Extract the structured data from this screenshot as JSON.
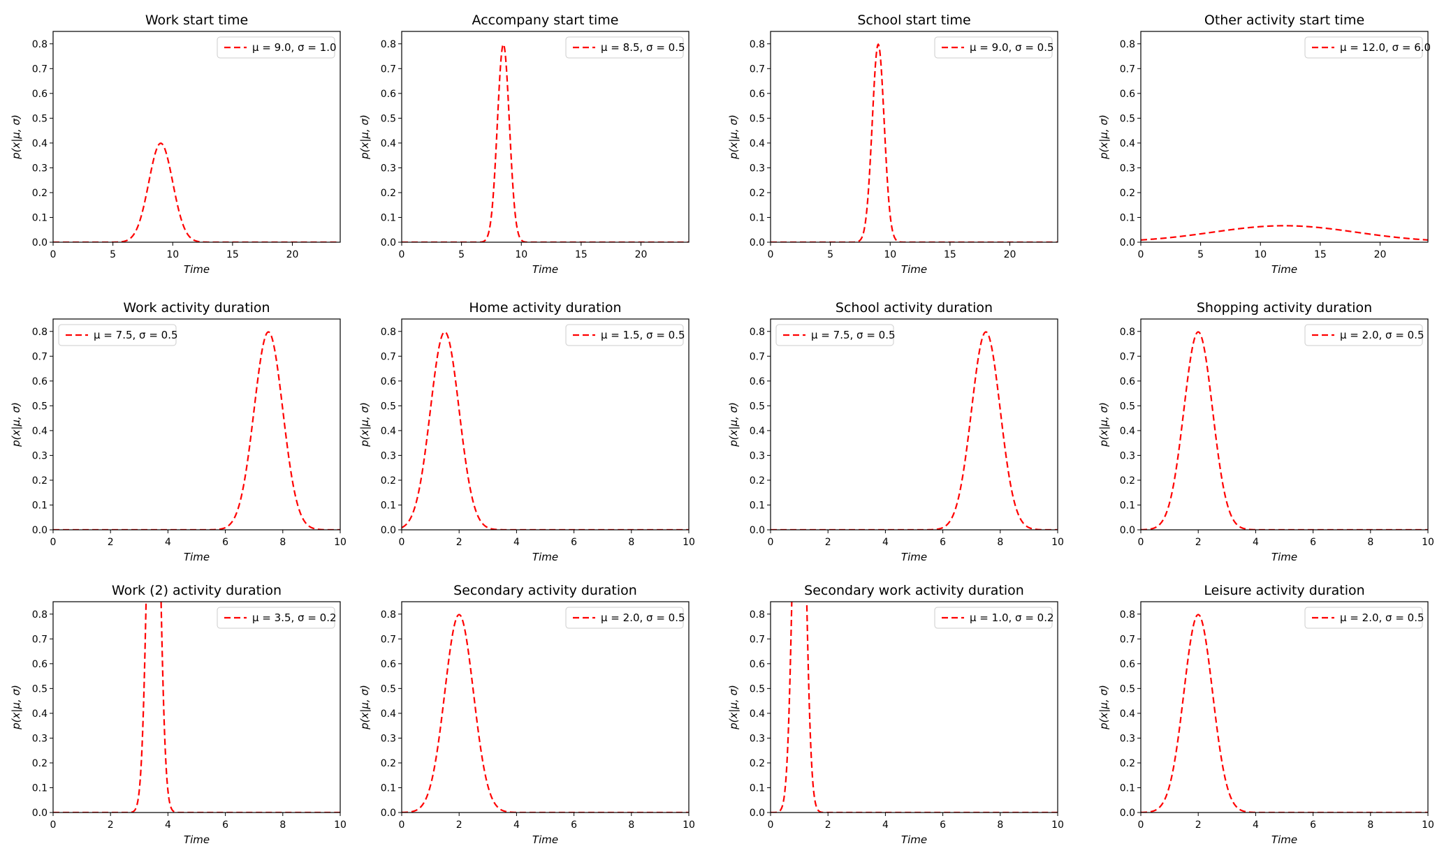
{
  "chart_data": [
    {
      "type": "line",
      "title": "Work start time",
      "xlabel": "Time",
      "ylabel": "p(x|μ, σ)",
      "xlim": [
        0,
        24
      ],
      "ylim": [
        0,
        0.85
      ],
      "xticks": [
        0,
        5,
        10,
        15,
        20
      ],
      "yticks": [
        0.0,
        0.1,
        0.2,
        0.3,
        0.4,
        0.5,
        0.6,
        0.7,
        0.8
      ],
      "legend": "top-right",
      "color": "#ff0000",
      "series": [
        {
          "name": "μ = 9.0,  σ = 1.0",
          "mu": 9.0,
          "sigma": 1.0
        }
      ]
    },
    {
      "type": "line",
      "title": "Accompany start time",
      "xlabel": "Time",
      "ylabel": "p(x|μ, σ)",
      "xlim": [
        0,
        24
      ],
      "ylim": [
        0,
        0.85
      ],
      "xticks": [
        0,
        5,
        10,
        15,
        20
      ],
      "yticks": [
        0.0,
        0.1,
        0.2,
        0.3,
        0.4,
        0.5,
        0.6,
        0.7,
        0.8
      ],
      "legend": "top-right",
      "color": "#ff0000",
      "series": [
        {
          "name": "μ = 8.5,  σ = 0.5",
          "mu": 8.5,
          "sigma": 0.5
        }
      ]
    },
    {
      "type": "line",
      "title": "School start time",
      "xlabel": "Time",
      "ylabel": "p(x|μ, σ)",
      "xlim": [
        0,
        24
      ],
      "ylim": [
        0,
        0.85
      ],
      "xticks": [
        0,
        5,
        10,
        15,
        20
      ],
      "yticks": [
        0.0,
        0.1,
        0.2,
        0.3,
        0.4,
        0.5,
        0.6,
        0.7,
        0.8
      ],
      "legend": "top-right",
      "color": "#ff0000",
      "series": [
        {
          "name": "μ = 9.0,  σ = 0.5",
          "mu": 9.0,
          "sigma": 0.5
        }
      ]
    },
    {
      "type": "line",
      "title": "Other activity start time",
      "xlabel": "Time",
      "ylabel": "p(x|μ, σ)",
      "xlim": [
        0,
        24
      ],
      "ylim": [
        0,
        0.85
      ],
      "xticks": [
        0,
        5,
        10,
        15,
        20
      ],
      "yticks": [
        0.0,
        0.1,
        0.2,
        0.3,
        0.4,
        0.5,
        0.6,
        0.7,
        0.8
      ],
      "legend": "top-right",
      "color": "#ff0000",
      "series": [
        {
          "name": "μ = 12.0,  σ = 6.0",
          "mu": 12.0,
          "sigma": 6.0
        }
      ]
    },
    {
      "type": "line",
      "title": "Work  activity duration",
      "xlabel": "Time",
      "ylabel": "p(x|μ, σ)",
      "xlim": [
        0,
        10
      ],
      "ylim": [
        0,
        0.85
      ],
      "xticks": [
        0,
        2,
        4,
        6,
        8,
        10
      ],
      "yticks": [
        0.0,
        0.1,
        0.2,
        0.3,
        0.4,
        0.5,
        0.6,
        0.7,
        0.8
      ],
      "legend": "top-left",
      "color": "#ff0000",
      "series": [
        {
          "name": "μ = 7.5,  σ = 0.5",
          "mu": 7.5,
          "sigma": 0.5
        }
      ]
    },
    {
      "type": "line",
      "title": "Home  activity duration",
      "xlabel": "Time",
      "ylabel": "p(x|μ, σ)",
      "xlim": [
        0,
        10
      ],
      "ylim": [
        0,
        0.85
      ],
      "xticks": [
        0,
        2,
        4,
        6,
        8,
        10
      ],
      "yticks": [
        0.0,
        0.1,
        0.2,
        0.3,
        0.4,
        0.5,
        0.6,
        0.7,
        0.8
      ],
      "legend": "top-right",
      "color": "#ff0000",
      "series": [
        {
          "name": "μ = 1.5,  σ = 0.5",
          "mu": 1.5,
          "sigma": 0.5
        }
      ]
    },
    {
      "type": "line",
      "title": "School  activity duration",
      "xlabel": "Time",
      "ylabel": "p(x|μ, σ)",
      "xlim": [
        0,
        10
      ],
      "ylim": [
        0,
        0.85
      ],
      "xticks": [
        0,
        2,
        4,
        6,
        8,
        10
      ],
      "yticks": [
        0.0,
        0.1,
        0.2,
        0.3,
        0.4,
        0.5,
        0.6,
        0.7,
        0.8
      ],
      "legend": "top-left",
      "color": "#ff0000",
      "series": [
        {
          "name": "μ = 7.5,  σ = 0.5",
          "mu": 7.5,
          "sigma": 0.5
        }
      ]
    },
    {
      "type": "line",
      "title": "Shopping  activity duration",
      "xlabel": "Time",
      "ylabel": "p(x|μ, σ)",
      "xlim": [
        0,
        10
      ],
      "ylim": [
        0,
        0.85
      ],
      "xticks": [
        0,
        2,
        4,
        6,
        8,
        10
      ],
      "yticks": [
        0.0,
        0.1,
        0.2,
        0.3,
        0.4,
        0.5,
        0.6,
        0.7,
        0.8
      ],
      "legend": "top-right",
      "color": "#ff0000",
      "series": [
        {
          "name": "μ = 2.0,  σ = 0.5",
          "mu": 2.0,
          "sigma": 0.5
        }
      ]
    },
    {
      "type": "line",
      "title": "Work (2)  activity duration",
      "xlabel": "Time",
      "ylabel": "p(x|μ, σ)",
      "xlim": [
        0,
        10
      ],
      "ylim": [
        0,
        0.85
      ],
      "xticks": [
        0,
        2,
        4,
        6,
        8,
        10
      ],
      "yticks": [
        0.0,
        0.1,
        0.2,
        0.3,
        0.4,
        0.5,
        0.6,
        0.7,
        0.8
      ],
      "legend": "top-right",
      "color": "#ff0000",
      "series": [
        {
          "name": "μ = 3.5,  σ = 0.2",
          "mu": 3.5,
          "sigma": 0.2
        }
      ]
    },
    {
      "type": "line",
      "title": "Secondary  activity duration",
      "xlabel": "Time",
      "ylabel": "p(x|μ, σ)",
      "xlim": [
        0,
        10
      ],
      "ylim": [
        0,
        0.85
      ],
      "xticks": [
        0,
        2,
        4,
        6,
        8,
        10
      ],
      "yticks": [
        0.0,
        0.1,
        0.2,
        0.3,
        0.4,
        0.5,
        0.6,
        0.7,
        0.8
      ],
      "legend": "top-right",
      "color": "#ff0000",
      "series": [
        {
          "name": "μ = 2.0,  σ = 0.5",
          "mu": 2.0,
          "sigma": 0.5
        }
      ]
    },
    {
      "type": "line",
      "title": "Secondary work  activity duration",
      "xlabel": "Time",
      "ylabel": "p(x|μ, σ)",
      "xlim": [
        0,
        10
      ],
      "ylim": [
        0,
        0.85
      ],
      "xticks": [
        0,
        2,
        4,
        6,
        8,
        10
      ],
      "yticks": [
        0.0,
        0.1,
        0.2,
        0.3,
        0.4,
        0.5,
        0.6,
        0.7,
        0.8
      ],
      "legend": "top-right",
      "color": "#ff0000",
      "series": [
        {
          "name": "μ = 1.0,  σ = 0.2",
          "mu": 1.0,
          "sigma": 0.2
        }
      ]
    },
    {
      "type": "line",
      "title": "Leisure  activity duration",
      "xlabel": "Time",
      "ylabel": "p(x|μ, σ)",
      "xlim": [
        0,
        10
      ],
      "ylim": [
        0,
        0.85
      ],
      "xticks": [
        0,
        2,
        4,
        6,
        8,
        10
      ],
      "yticks": [
        0.0,
        0.1,
        0.2,
        0.3,
        0.4,
        0.5,
        0.6,
        0.7,
        0.8
      ],
      "legend": "top-right",
      "color": "#ff0000",
      "series": [
        {
          "name": "μ = 2.0,  σ = 0.5",
          "mu": 2.0,
          "sigma": 0.5
        }
      ]
    }
  ]
}
